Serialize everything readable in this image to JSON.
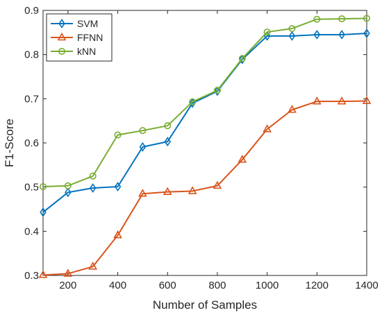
{
  "chart_data": {
    "type": "line",
    "xlabel": "Number of Samples",
    "ylabel": "F1-Score",
    "xlim": [
      100,
      1400
    ],
    "ylim": [
      0.3,
      0.9
    ],
    "xticks": [
      200,
      400,
      600,
      800,
      1000,
      1200,
      1400
    ],
    "yticks": [
      0.3,
      0.4,
      0.5,
      0.6,
      0.7,
      0.8,
      0.9
    ],
    "x": [
      100,
      200,
      300,
      400,
      500,
      600,
      700,
      800,
      900,
      1000,
      1100,
      1200,
      1300,
      1400
    ],
    "grid": false,
    "legend_position": "top-left",
    "series": [
      {
        "name": "SVM",
        "color": "#0072BD",
        "marker": "diamond",
        "values": [
          0.443,
          0.488,
          0.498,
          0.501,
          0.591,
          0.603,
          0.69,
          0.717,
          0.789,
          0.842,
          0.842,
          0.845,
          0.845,
          0.848
        ]
      },
      {
        "name": "FFNN",
        "color": "#D95319",
        "marker": "triangle",
        "values": [
          0.301,
          0.304,
          0.32,
          0.391,
          0.485,
          0.489,
          0.491,
          0.503,
          0.562,
          0.631,
          0.675,
          0.694,
          0.694,
          0.695
        ]
      },
      {
        "name": "kNN",
        "color": "#77AC30",
        "marker": "circle",
        "values": [
          0.501,
          0.503,
          0.525,
          0.618,
          0.628,
          0.639,
          0.693,
          0.719,
          0.791,
          0.851,
          0.859,
          0.88,
          0.881,
          0.882
        ]
      }
    ]
  }
}
